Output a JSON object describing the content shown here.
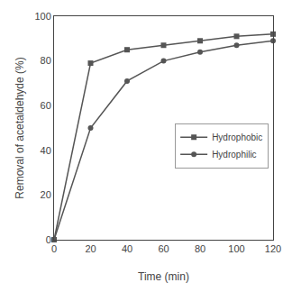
{
  "chart_data": {
    "type": "line",
    "x": [
      0,
      20,
      40,
      60,
      80,
      100,
      120
    ],
    "series": [
      {
        "name": "Hydrophobic",
        "color": "#555555",
        "marker": "square",
        "values": [
          0,
          79,
          85,
          87,
          89,
          91,
          92
        ]
      },
      {
        "name": "Hydrophilic",
        "color": "#555555",
        "marker": "circle",
        "values": [
          0,
          50,
          71,
          80,
          84,
          87,
          89
        ]
      }
    ],
    "xlabel": "Time (min)",
    "ylabel": "Removal of acetaldehyde (%)",
    "xlim": [
      0,
      120
    ],
    "ylim": [
      0,
      100
    ],
    "xticks": [
      0,
      20,
      40,
      60,
      80,
      100,
      120
    ],
    "yticks": [
      0,
      20,
      40,
      60,
      80,
      100
    ],
    "grid": false,
    "legend": "center right"
  }
}
